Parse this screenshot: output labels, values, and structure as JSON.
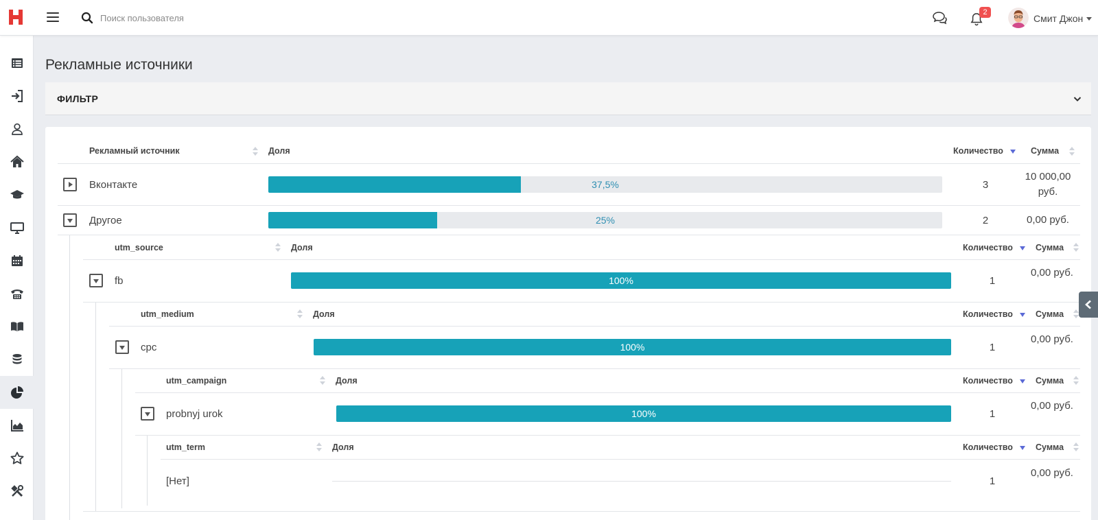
{
  "header": {
    "search_placeholder": "Поиск пользователя",
    "notifications_count": "2",
    "user_name": "Смит Джон"
  },
  "sidebar": {
    "items": [
      {
        "icon": "list-icon"
      },
      {
        "icon": "sign-in-icon"
      },
      {
        "icon": "user-icon"
      },
      {
        "icon": "home-icon"
      },
      {
        "icon": "graduation-cap-icon"
      },
      {
        "icon": "monitor-icon"
      },
      {
        "icon": "calendar-icon"
      },
      {
        "icon": "phone-icon"
      },
      {
        "icon": "book-icon"
      },
      {
        "icon": "coins-icon"
      },
      {
        "icon": "pie-chart-icon",
        "active": true
      },
      {
        "icon": "area-chart-icon"
      },
      {
        "icon": "star-icon"
      },
      {
        "icon": "tools-icon"
      }
    ]
  },
  "page": {
    "title": "Рекламные источники"
  },
  "filter": {
    "title": "ФИЛЬТР"
  },
  "table": {
    "headers": {
      "source": "Рекламный источник",
      "share": "Доля",
      "count": "Количество",
      "sum": "Сумма"
    },
    "rows": [
      {
        "name": "Вконтакте",
        "share": 0.375,
        "share_label": "37,5%",
        "count": "3",
        "sum": "10 000,00 руб.",
        "expanded": false
      },
      {
        "name": "Другое",
        "share": 0.25,
        "share_label": "25%",
        "count": "2",
        "sum": "0,00 руб.",
        "expanded": true
      }
    ],
    "nested": [
      {
        "header": "utm_source",
        "share_header": "Доля",
        "count_header": "Количество",
        "sum_header": "Сумма",
        "row": {
          "name": "fb",
          "share": 1.0,
          "share_label": "100%",
          "count": "1",
          "sum": "0,00 руб."
        }
      },
      {
        "header": "utm_medium",
        "share_header": "Доля",
        "count_header": "Количество",
        "sum_header": "Сумма",
        "row": {
          "name": "cpc",
          "share": 1.0,
          "share_label": "100%",
          "count": "1",
          "sum": "0,00 руб."
        }
      },
      {
        "header": "utm_campaign",
        "share_header": "Доля",
        "count_header": "Количество",
        "sum_header": "Сумма",
        "row": {
          "name": "probnyj urok",
          "share": 1.0,
          "share_label": "100%",
          "count": "1",
          "sum": "0,00 руб."
        }
      },
      {
        "header": "utm_term",
        "share_header": "Доля",
        "count_header": "Количество",
        "sum_header": "Сумма",
        "row": {
          "name": "[Нет]",
          "share": 0,
          "share_label": "",
          "count": "1",
          "sum": "0,00 руб."
        }
      }
    ]
  },
  "colors": {
    "bar_fill": "#17a2b8",
    "bar_track": "#e8eaed",
    "sort_active": "#5b6ad6",
    "badge": "#f05050",
    "logo": "#e53935"
  }
}
